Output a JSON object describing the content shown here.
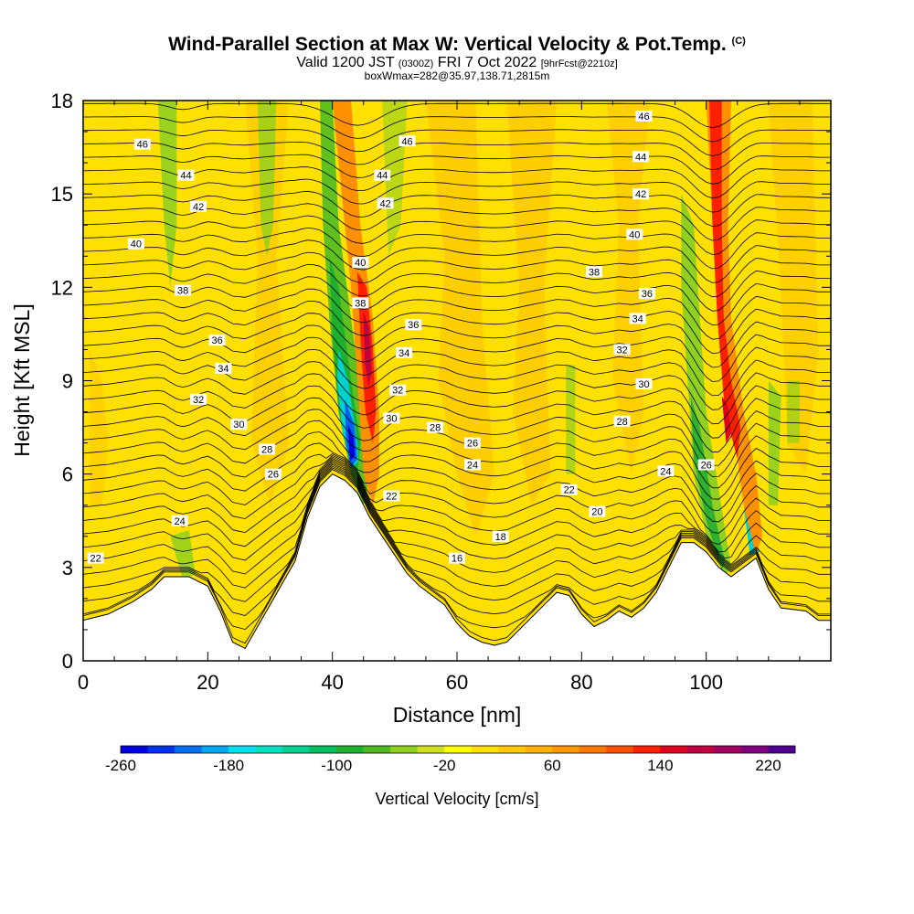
{
  "header": {
    "title": "Wind-Parallel Section at Max W: Vertical Velocity & Pot.Temp.",
    "copyright": "(C)",
    "valid_main": "Valid 1200 JST",
    "valid_utc": "(0300Z)",
    "valid_date": "FRI 7 Oct 2022",
    "valid_fcst": "[9hrFcst@2210z]",
    "box_info": "boxWmax=282@35.97,138.71,2815m"
  },
  "chart_data": {
    "type": "heatmap",
    "xlabel": "Distance [nm]",
    "ylabel": "Height [Kft MSL]",
    "xlim": [
      0,
      120
    ],
    "ylim": [
      0,
      18
    ],
    "x_ticks": [
      "0",
      "20",
      "40",
      "60",
      "80",
      "100"
    ],
    "y_ticks": [
      "0",
      "3",
      "6",
      "9",
      "12",
      "15",
      "18"
    ],
    "colorbar": {
      "title": "Vertical Velocity [cm/s]",
      "tick_labels": [
        "-260",
        "-180",
        "-100",
        "-20",
        "60",
        "140",
        "220"
      ],
      "colors": [
        "#0000e0",
        "#0030f0",
        "#0070f0",
        "#00a8f0",
        "#00e0f0",
        "#00e0c0",
        "#00d090",
        "#00c060",
        "#20b030",
        "#50b820",
        "#90d020",
        "#d0e020",
        "#ffff00",
        "#ffe000",
        "#ffc800",
        "#ffb000",
        "#ff9800",
        "#ff7800",
        "#ff5000",
        "#ff2000",
        "#e00020",
        "#c00040",
        "#a00060",
        "#800080",
        "#500090"
      ]
    },
    "terrain_profile": [
      [
        0,
        1.3
      ],
      [
        4,
        1.5
      ],
      [
        8,
        1.9
      ],
      [
        11,
        2.3
      ],
      [
        13,
        2.7
      ],
      [
        17,
        2.7
      ],
      [
        20,
        2.4
      ],
      [
        22,
        1.6
      ],
      [
        24,
        0.6
      ],
      [
        26,
        0.4
      ],
      [
        28,
        1.1
      ],
      [
        30,
        1.8
      ],
      [
        32,
        2.5
      ],
      [
        34,
        3.2
      ],
      [
        36,
        4.6
      ],
      [
        38,
        5.6
      ],
      [
        40,
        6.0
      ],
      [
        42,
        5.8
      ],
      [
        44,
        5.4
      ],
      [
        46,
        4.6
      ],
      [
        48,
        4.0
      ],
      [
        50,
        3.4
      ],
      [
        52,
        2.8
      ],
      [
        54,
        2.4
      ],
      [
        56,
        2.1
      ],
      [
        58,
        1.8
      ],
      [
        60,
        1.2
      ],
      [
        62,
        0.8
      ],
      [
        64,
        0.6
      ],
      [
        66,
        0.5
      ],
      [
        68,
        0.6
      ],
      [
        70,
        1.0
      ],
      [
        72,
        1.4
      ],
      [
        74,
        1.8
      ],
      [
        76,
        2.2
      ],
      [
        78,
        2.1
      ],
      [
        80,
        1.5
      ],
      [
        82,
        1.1
      ],
      [
        84,
        1.3
      ],
      [
        86,
        1.6
      ],
      [
        88,
        1.4
      ],
      [
        90,
        1.7
      ],
      [
        92,
        2.2
      ],
      [
        94,
        3.0
      ],
      [
        96,
        3.8
      ],
      [
        98,
        3.8
      ],
      [
        100,
        3.5
      ],
      [
        102,
        3.0
      ],
      [
        104,
        2.7
      ],
      [
        106,
        3.0
      ],
      [
        108,
        3.3
      ],
      [
        110,
        2.3
      ],
      [
        112,
        1.7
      ],
      [
        116,
        1.6
      ],
      [
        118,
        1.3
      ],
      [
        120,
        1.3
      ]
    ],
    "updraft_core_velocity": 282,
    "contour_labels": [
      {
        "value": "46",
        "x": 9.5,
        "y": 16.6
      },
      {
        "value": "44",
        "x": 16.5,
        "y": 15.6
      },
      {
        "value": "42",
        "x": 18.5,
        "y": 14.6
      },
      {
        "value": "40",
        "x": 8.5,
        "y": 13.4
      },
      {
        "value": "38",
        "x": 16.0,
        "y": 11.9
      },
      {
        "value": "36",
        "x": 21.5,
        "y": 10.3
      },
      {
        "value": "34",
        "x": 22.5,
        "y": 9.4
      },
      {
        "value": "32",
        "x": 18.5,
        "y": 8.4
      },
      {
        "value": "30",
        "x": 25.0,
        "y": 7.6
      },
      {
        "value": "28",
        "x": 29.5,
        "y": 6.8
      },
      {
        "value": "26",
        "x": 30.5,
        "y": 6.0
      },
      {
        "value": "24",
        "x": 15.5,
        "y": 4.5
      },
      {
        "value": "22",
        "x": 2.0,
        "y": 3.3
      },
      {
        "value": "46",
        "x": 52.0,
        "y": 16.7
      },
      {
        "value": "44",
        "x": 48.0,
        "y": 15.6
      },
      {
        "value": "42",
        "x": 48.5,
        "y": 14.7
      },
      {
        "value": "40",
        "x": 44.5,
        "y": 12.8
      },
      {
        "value": "38",
        "x": 44.5,
        "y": 11.5
      },
      {
        "value": "36",
        "x": 53.0,
        "y": 10.8
      },
      {
        "value": "34",
        "x": 51.5,
        "y": 9.9
      },
      {
        "value": "32",
        "x": 50.5,
        "y": 8.7
      },
      {
        "value": "30",
        "x": 49.5,
        "y": 7.8
      },
      {
        "value": "28",
        "x": 56.5,
        "y": 7.5
      },
      {
        "value": "26",
        "x": 62.5,
        "y": 7.0
      },
      {
        "value": "24",
        "x": 62.5,
        "y": 6.3
      },
      {
        "value": "22",
        "x": 49.5,
        "y": 5.3
      },
      {
        "value": "18",
        "x": 67.0,
        "y": 4.0
      },
      {
        "value": "16",
        "x": 60.0,
        "y": 3.3
      },
      {
        "value": "22",
        "x": 78.0,
        "y": 5.5
      },
      {
        "value": "20",
        "x": 82.5,
        "y": 4.8
      },
      {
        "value": "46",
        "x": 90.0,
        "y": 17.5
      },
      {
        "value": "44",
        "x": 89.5,
        "y": 16.2
      },
      {
        "value": "42",
        "x": 89.5,
        "y": 15.0
      },
      {
        "value": "40",
        "x": 88.5,
        "y": 13.7
      },
      {
        "value": "38",
        "x": 82.0,
        "y": 12.5
      },
      {
        "value": "36",
        "x": 90.5,
        "y": 11.8
      },
      {
        "value": "34",
        "x": 89.0,
        "y": 11.0
      },
      {
        "value": "32",
        "x": 86.5,
        "y": 10.0
      },
      {
        "value": "30",
        "x": 90.0,
        "y": 8.9
      },
      {
        "value": "28",
        "x": 86.5,
        "y": 7.7
      },
      {
        "value": "26",
        "x": 100.0,
        "y": 6.3
      },
      {
        "value": "24",
        "x": 93.5,
        "y": 6.1
      }
    ]
  }
}
